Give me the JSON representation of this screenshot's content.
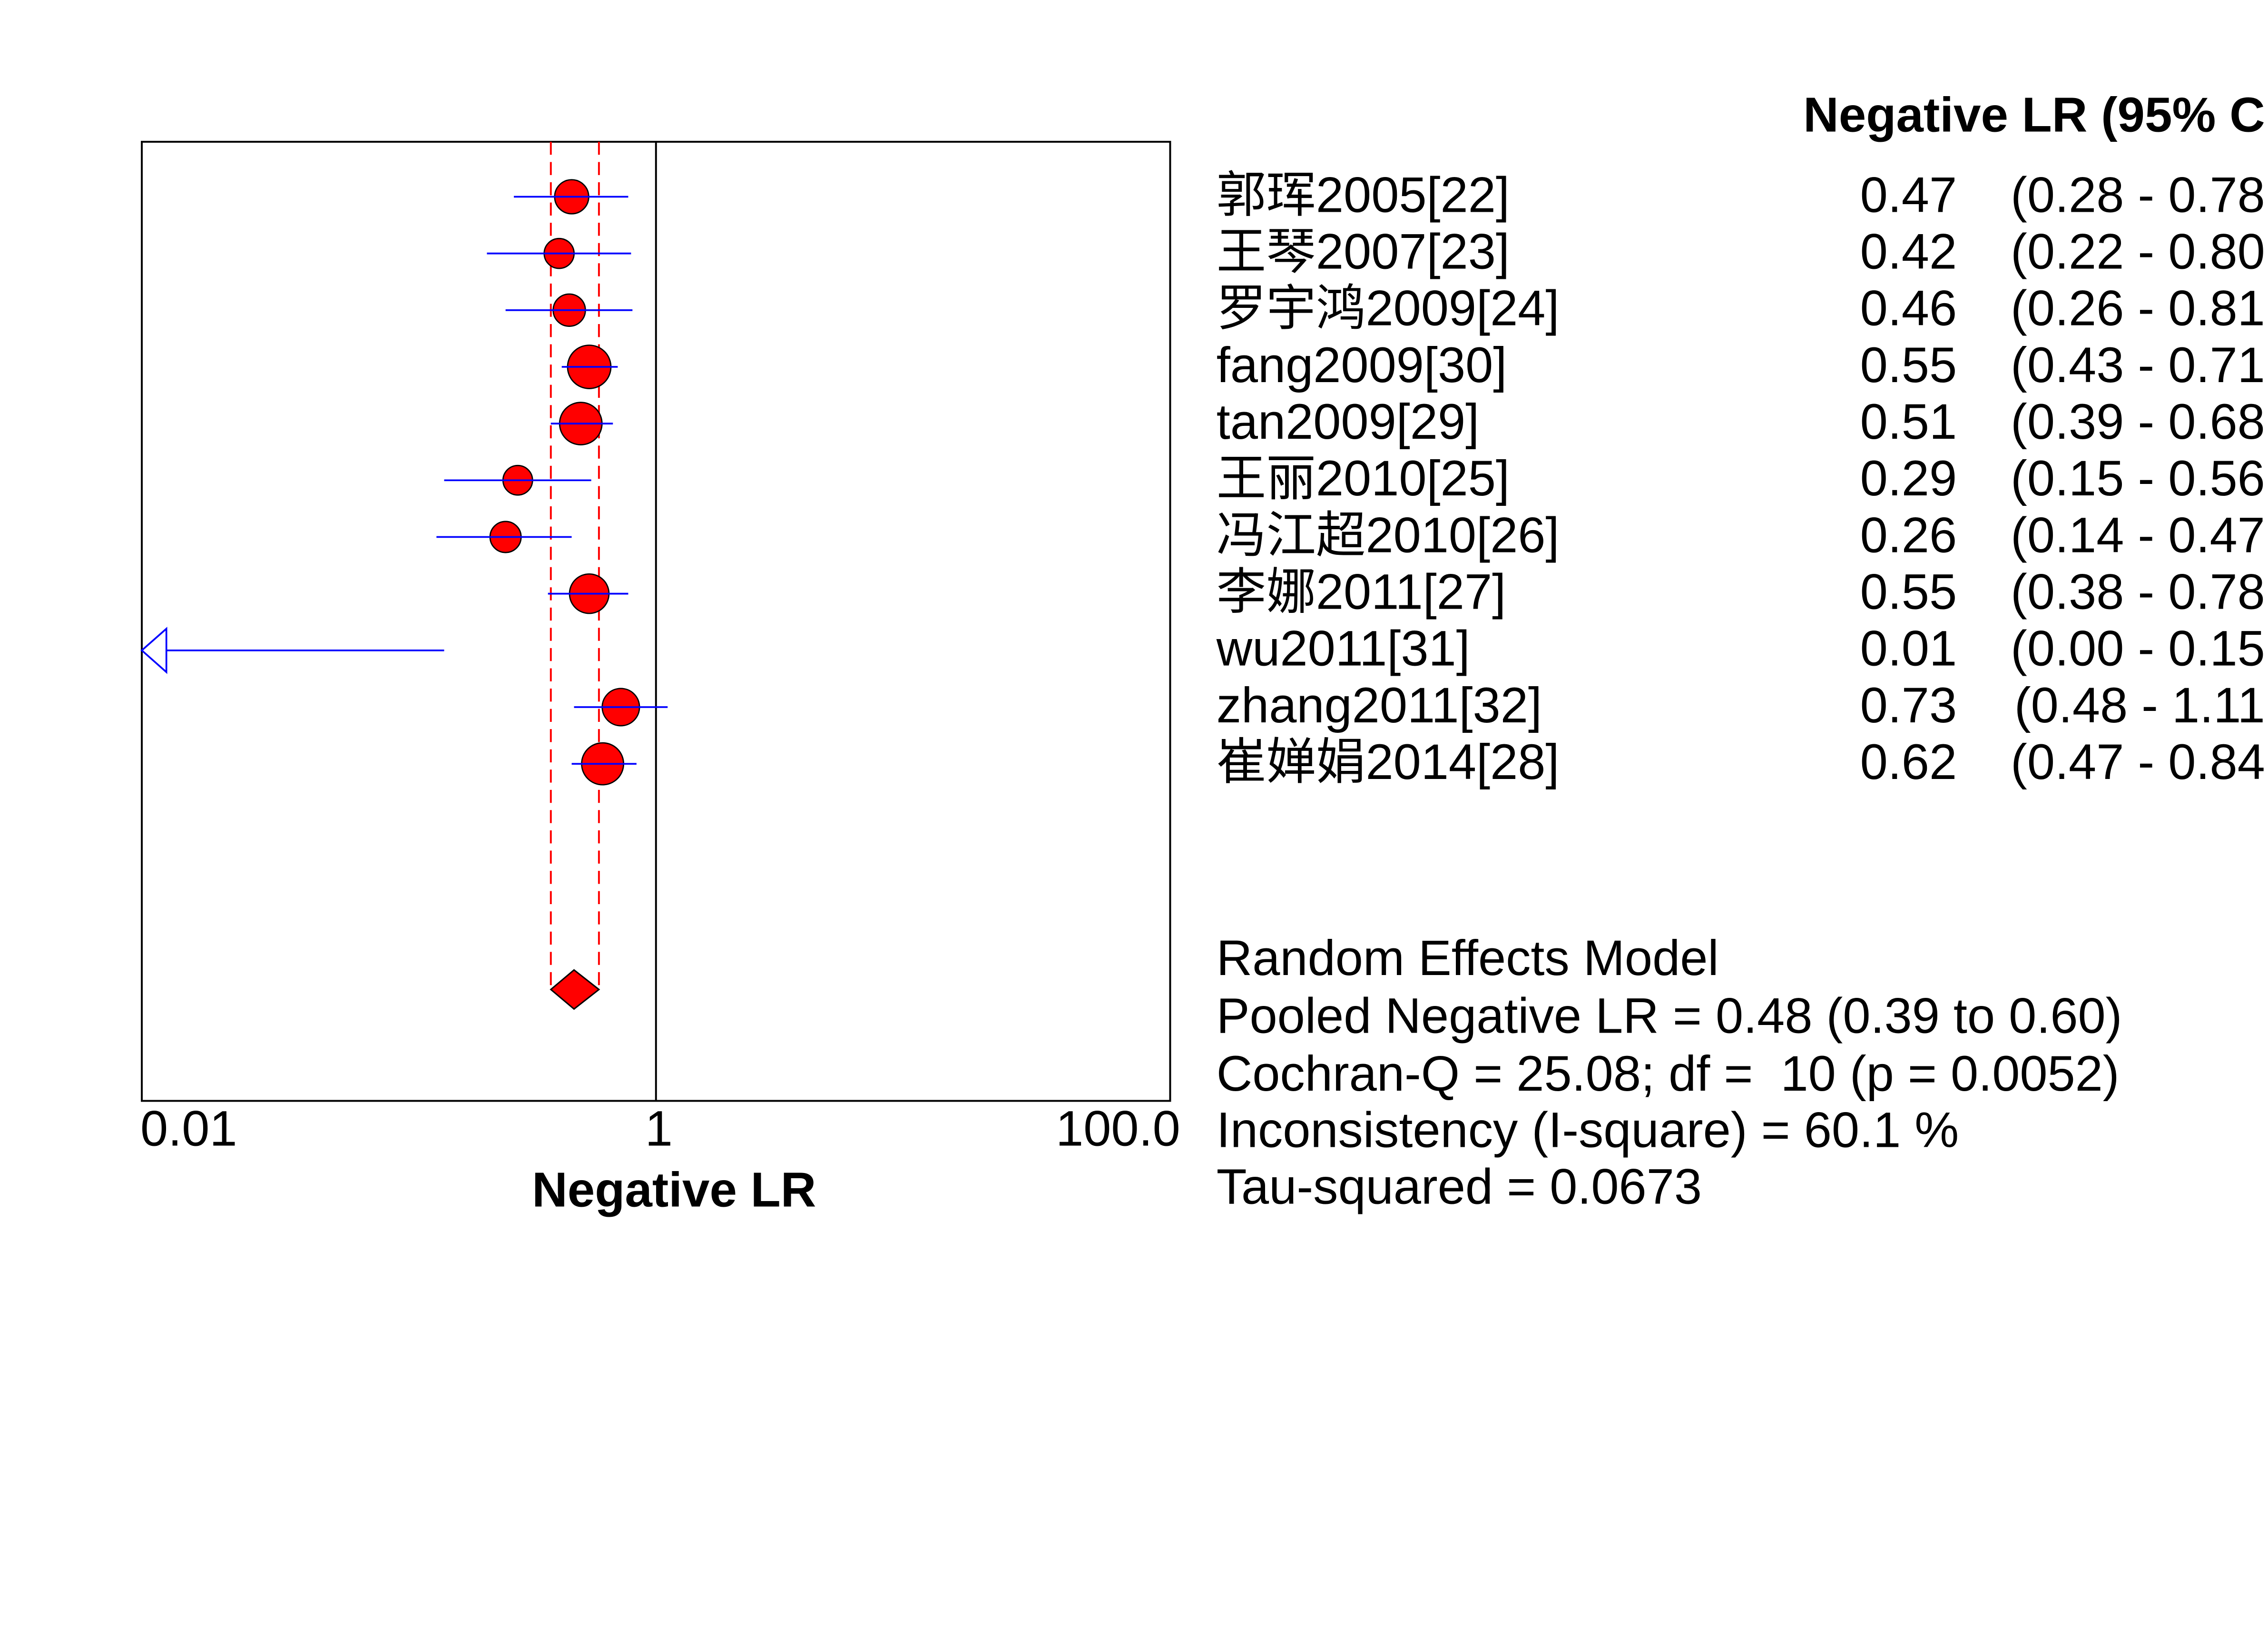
{
  "chart_data": {
    "type": "scatter",
    "title": "",
    "xlabel": "Negative LR",
    "ylabel": "",
    "xscale": "log",
    "xlim": [
      0.01,
      100
    ],
    "grid": false,
    "reference_line": 1,
    "x_ticks": [
      {
        "value": 0.01,
        "label": "0.01"
      },
      {
        "value": 1,
        "label": "1"
      },
      {
        "value": 100,
        "label": "100.0"
      }
    ],
    "column_header": "Negative LR (95% C",
    "studies": [
      {
        "label": "郭珲2005[22]",
        "lr": 0.47,
        "ci": [
          0.28,
          0.78
        ],
        "lr_text": "0.47",
        "ci_text": "(0.28 - 0.78"
      },
      {
        "label": "王琴2007[23]",
        "lr": 0.42,
        "ci": [
          0.22,
          0.8
        ],
        "lr_text": "0.42",
        "ci_text": "(0.22 - 0.80"
      },
      {
        "label": "罗宇鸿2009[24]",
        "lr": 0.46,
        "ci": [
          0.26,
          0.81
        ],
        "lr_text": "0.46",
        "ci_text": "(0.26 - 0.81"
      },
      {
        "label": "fang2009[30]",
        "lr": 0.55,
        "ci": [
          0.43,
          0.71
        ],
        "lr_text": "0.55",
        "ci_text": "(0.43 - 0.71"
      },
      {
        "label": "tan2009[29]",
        "lr": 0.51,
        "ci": [
          0.39,
          0.68
        ],
        "lr_text": "0.51",
        "ci_text": "(0.39 - 0.68"
      },
      {
        "label": "王丽2010[25]",
        "lr": 0.29,
        "ci": [
          0.15,
          0.56
        ],
        "lr_text": "0.29",
        "ci_text": "(0.15 - 0.56"
      },
      {
        "label": "冯江超2010[26]",
        "lr": 0.26,
        "ci": [
          0.14,
          0.47
        ],
        "lr_text": "0.26",
        "ci_text": "(0.14 - 0.47"
      },
      {
        "label": "李娜2011[27]",
        "lr": 0.55,
        "ci": [
          0.38,
          0.78
        ],
        "lr_text": "0.55",
        "ci_text": "(0.38 - 0.78"
      },
      {
        "label": "wu2011[31]",
        "lr": 0.01,
        "ci": [
          0.0,
          0.15
        ],
        "lr_text": "0.01",
        "ci_text": "(0.00 - 0.15"
      },
      {
        "label": "zhang2011[32]",
        "lr": 0.73,
        "ci": [
          0.48,
          1.11
        ],
        "lr_text": "0.73",
        "ci_text": "(0.48 - 1.11"
      },
      {
        "label": "崔婵娟2014[28]",
        "lr": 0.62,
        "ci": [
          0.47,
          0.84
        ],
        "lr_text": "0.62",
        "ci_text": "(0.47 - 0.84"
      }
    ],
    "pooled": {
      "model_label": "Random Effects Model",
      "lr": 0.48,
      "ci": [
        0.39,
        0.6
      ],
      "text": "Pooled Negative LR = 0.48 (0.39 to 0.60)"
    },
    "heterogeneity": {
      "cochran_q_text": "Cochran-Q = 25.08; df =  10 (p = 0.0052)",
      "inconsistency_text": "Inconsistency (I-square) = 60.1 %",
      "tau_squared_text": "Tau-squared = 0.0673"
    }
  },
  "colors": {
    "marker_fill": "#ff0000",
    "ci_line": "#0000ff",
    "pooled": "#ff0000",
    "frame": "#000000"
  }
}
